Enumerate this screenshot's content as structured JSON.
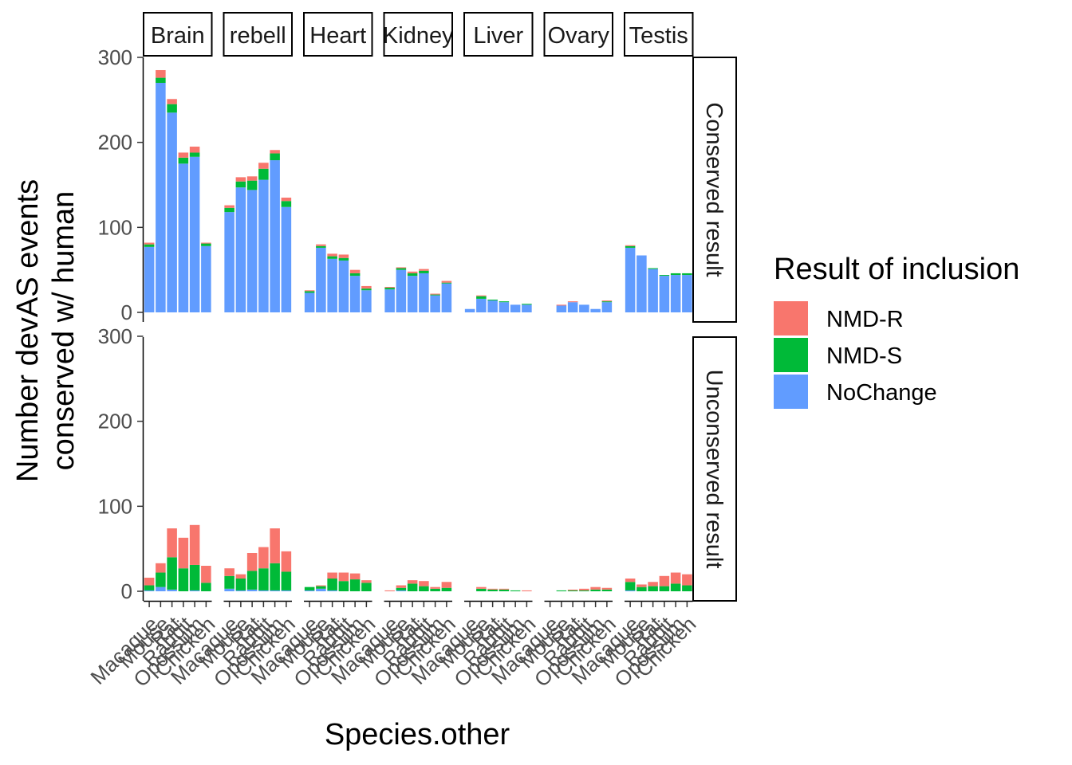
{
  "chart_data": {
    "type": "bar",
    "stacked": true,
    "xlabel": "Species.other",
    "ylabel_lines": [
      "Number devAS events",
      "conserved w/ human"
    ],
    "ylim": [
      0,
      300
    ],
    "yticks": [
      0,
      100,
      200,
      300
    ],
    "species": [
      "Macaque",
      "Mouse",
      "Rat",
      "Rabbit",
      "Opossum",
      "Chicken"
    ],
    "tissues": [
      {
        "label": "Brain",
        "display": "Brain"
      },
      {
        "label": "Cerebellum",
        "display": "rebell"
      },
      {
        "label": "Heart",
        "display": "Heart"
      },
      {
        "label": "Kidney",
        "display": "Kidney"
      },
      {
        "label": "Liver",
        "display": "Liver"
      },
      {
        "label": "Ovary",
        "display": "Ovary"
      },
      {
        "label": "Testis",
        "display": "Testis"
      }
    ],
    "rows": [
      "Conserved result",
      "Unconserved result"
    ],
    "series": [
      {
        "name": "NoChange",
        "color": "#619CFF"
      },
      {
        "name": "NMD-S",
        "color": "#00BA38"
      },
      {
        "name": "NMD-R",
        "color": "#F8766D"
      }
    ],
    "legend": {
      "title": "Result of inclusion",
      "position": "right",
      "entries": [
        {
          "name": "NMD-R",
          "color": "#F8766D"
        },
        {
          "name": "NMD-S",
          "color": "#00BA38"
        },
        {
          "name": "NoChange",
          "color": "#619CFF"
        }
      ]
    },
    "data": {
      "Conserved result": {
        "Brain": {
          "NoChange": [
            77,
            270,
            235,
            175,
            183,
            78
          ],
          "NMD-S": [
            3,
            6,
            10,
            7,
            5,
            3
          ],
          "NMD-R": [
            2,
            9,
            6,
            6,
            7,
            1
          ]
        },
        "Cerebellum": {
          "NoChange": [
            118,
            147,
            144,
            156,
            179,
            124
          ],
          "NMD-S": [
            5,
            7,
            11,
            13,
            8,
            7
          ],
          "NMD-R": [
            3,
            5,
            5,
            7,
            4,
            4
          ]
        },
        "Heart": {
          "NoChange": [
            23,
            76,
            63,
            61,
            43,
            26
          ],
          "NMD-S": [
            2,
            2,
            3,
            3,
            3,
            2
          ],
          "NMD-R": [
            1,
            2,
            3,
            4,
            4,
            3
          ]
        },
        "Kidney": {
          "NoChange": [
            27,
            50,
            43,
            46,
            20,
            34
          ],
          "NMD-S": [
            2,
            2,
            3,
            3,
            1,
            1
          ],
          "NMD-R": [
            1,
            1,
            2,
            2,
            1,
            2
          ]
        },
        "Liver": {
          "NoChange": [
            4,
            16,
            14,
            12,
            9,
            9
          ],
          "NMD-S": [
            0,
            3,
            1,
            1,
            0,
            1
          ],
          "NMD-R": [
            0,
            1,
            0,
            0,
            0,
            0
          ]
        },
        "Ovary": {
          "NoChange": [
            0,
            8,
            12,
            9,
            4,
            12
          ],
          "NMD-S": [
            0,
            0,
            0,
            0,
            0,
            1
          ],
          "NMD-R": [
            0,
            1,
            1,
            0,
            0,
            1
          ]
        },
        "Testis": {
          "NoChange": [
            76,
            67,
            51,
            43,
            44,
            44
          ],
          "NMD-S": [
            2,
            0,
            1,
            1,
            2,
            2
          ],
          "NMD-R": [
            1,
            0,
            0,
            0,
            0,
            0
          ]
        }
      },
      "Unconserved result": {
        "Brain": {
          "NoChange": [
            1,
            5,
            2,
            0,
            1,
            0
          ],
          "NMD-S": [
            6,
            17,
            38,
            27,
            30,
            10
          ],
          "NMD-R": [
            9,
            11,
            34,
            36,
            47,
            20
          ]
        },
        "Cerebellum": {
          "NoChange": [
            3,
            1,
            2,
            1,
            1,
            1
          ],
          "NMD-S": [
            15,
            14,
            22,
            26,
            32,
            22
          ],
          "NMD-R": [
            9,
            5,
            21,
            25,
            41,
            24
          ]
        },
        "Heart": {
          "NoChange": [
            1,
            3,
            1,
            0,
            0,
            0
          ],
          "NMD-S": [
            4,
            3,
            14,
            12,
            14,
            10
          ],
          "NMD-R": [
            0,
            1,
            7,
            10,
            7,
            3
          ]
        },
        "Kidney": {
          "NoChange": [
            0,
            1,
            0,
            0,
            0,
            0
          ],
          "NMD-S": [
            0,
            3,
            9,
            6,
            3,
            4
          ],
          "NMD-R": [
            1,
            3,
            4,
            6,
            2,
            7
          ]
        },
        "Liver": {
          "NoChange": [
            0,
            0,
            0,
            0,
            0,
            0
          ],
          "NMD-S": [
            0,
            3,
            2,
            2,
            1,
            0
          ],
          "NMD-R": [
            0,
            2,
            1,
            1,
            0,
            1
          ]
        },
        "Ovary": {
          "NoChange": [
            0,
            0,
            0,
            0,
            0,
            0
          ],
          "NMD-S": [
            0,
            1,
            1,
            1,
            2,
            2
          ],
          "NMD-R": [
            0,
            0,
            1,
            2,
            3,
            2
          ]
        },
        "Testis": {
          "NoChange": [
            1,
            0,
            0,
            0,
            0,
            0
          ],
          "NMD-S": [
            10,
            5,
            6,
            6,
            9,
            7
          ],
          "NMD-R": [
            4,
            3,
            5,
            12,
            13,
            13
          ]
        }
      }
    }
  }
}
